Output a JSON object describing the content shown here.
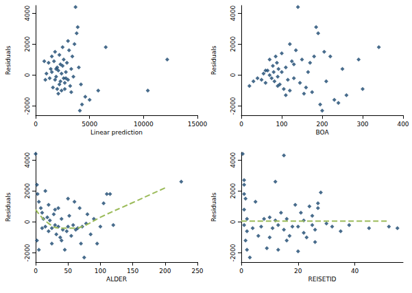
{
  "chart_data": [
    {
      "type": "scatter",
      "xlabel": "Linear prediction",
      "ylabel": "Residuals",
      "xlim": [
        0,
        15000
      ],
      "xticks": [
        0,
        5000,
        10000,
        15000
      ],
      "ylim": [
        -2600,
        4500
      ],
      "yticks": [
        -2000,
        0,
        2000,
        4000
      ],
      "grid": false,
      "series": [
        {
          "type": "scatter",
          "color": "#1a476f",
          "marker": "diamond",
          "x": [
            1500,
            1800,
            2000,
            2200,
            2400,
            2600,
            1700,
            1900,
            2100,
            2300,
            2500,
            2700,
            1600,
            2800,
            3000,
            1400,
            1300,
            1200,
            1000,
            800,
            900,
            3200,
            3400,
            3100,
            2900,
            3300,
            3500,
            2000,
            2200,
            2400,
            2600,
            1800,
            3600,
            3700,
            3900,
            3800,
            3000,
            4000,
            4200,
            4300,
            4100,
            4600,
            5000,
            5800,
            6500,
            10400,
            12200,
            2500,
            2100,
            1500,
            2700,
            3300,
            2300,
            1900,
            2800
          ],
          "values": [
            200,
            -300,
            500,
            -600,
            100,
            -200,
            900,
            -100,
            300,
            -400,
            600,
            -500,
            -800,
            200,
            -300,
            400,
            -200,
            800,
            100,
            900,
            -300,
            -700,
            1200,
            1600,
            800,
            400,
            -100,
            -900,
            1300,
            -1000,
            1000,
            1500,
            2000,
            4400,
            3100,
            2700,
            2200,
            500,
            -600,
            -1900,
            -2300,
            -1400,
            -1600,
            -1000,
            1800,
            -1000,
            1000,
            1800,
            -1200,
            1200,
            -900,
            -1100,
            700,
            400,
            -200
          ]
        }
      ]
    },
    {
      "type": "scatter",
      "xlabel": "BOA",
      "ylabel": "Residuals",
      "xlim": [
        0,
        400
      ],
      "xticks": [
        0,
        100,
        200,
        300,
        400
      ],
      "ylim": [
        -2600,
        4500
      ],
      "yticks": [
        -2000,
        0,
        2000,
        4000
      ],
      "grid": false,
      "series": [
        {
          "type": "scatter",
          "color": "#1a476f",
          "marker": "diamond",
          "x": [
            20,
            30,
            40,
            50,
            55,
            60,
            65,
            70,
            75,
            78,
            80,
            82,
            85,
            88,
            90,
            92,
            95,
            100,
            105,
            110,
            115,
            120,
            125,
            130,
            135,
            140,
            145,
            150,
            155,
            160,
            165,
            170,
            175,
            180,
            185,
            190,
            195,
            200,
            205,
            210,
            220,
            230,
            240,
            250,
            260,
            290,
            300,
            340,
            90,
            70,
            110,
            130,
            60,
            100,
            120
          ],
          "values": [
            -700,
            -400,
            -200,
            -300,
            100,
            -500,
            300,
            0,
            -200,
            600,
            200,
            -400,
            1200,
            800,
            -100,
            400,
            -600,
            200,
            -900,
            500,
            -300,
            -1000,
            900,
            -200,
            1600,
            4400,
            -500,
            1000,
            -1200,
            -800,
            200,
            800,
            -1100,
            1200,
            3100,
            2700,
            -1900,
            -2300,
            1500,
            -400,
            1200,
            -1600,
            -1800,
            400,
            -1300,
            1000,
            -900,
            1800,
            -700,
            1000,
            -1300,
            700,
            300,
            1400,
            2000
          ]
        }
      ]
    },
    {
      "type": "scatter",
      "xlabel": "ALDER",
      "ylabel": "Residuals",
      "xlim": [
        0,
        250
      ],
      "xticks": [
        0,
        50,
        100,
        150,
        200,
        250
      ],
      "ylim": [
        -2600,
        4500
      ],
      "yticks": [
        -2000,
        0,
        2000,
        4000
      ],
      "grid": false,
      "series": [
        {
          "type": "scatter",
          "color": "#1a476f",
          "marker": "diamond",
          "x": [
            0,
            2,
            3,
            5,
            5,
            2,
            8,
            10,
            12,
            15,
            18,
            20,
            22,
            25,
            28,
            30,
            32,
            35,
            38,
            40,
            42,
            45,
            48,
            50,
            52,
            55,
            58,
            60,
            62,
            65,
            68,
            70,
            72,
            75,
            78,
            80,
            85,
            90,
            95,
            100,
            105,
            110,
            115,
            120,
            225,
            10,
            20,
            30,
            40,
            50,
            15,
            25,
            35
          ],
          "values": [
            4400,
            2400,
            1800,
            1300,
            -1800,
            -1200,
            900,
            600,
            200,
            -300,
            300,
            -600,
            100,
            -400,
            500,
            -200,
            -800,
            -300,
            -1000,
            200,
            -500,
            -1800,
            -600,
            -300,
            400,
            -900,
            -200,
            1300,
            -500,
            -400,
            900,
            -1400,
            -300,
            -2300,
            -100,
            500,
            -800,
            200,
            -1400,
            -300,
            1200,
            1800,
            1800,
            -200,
            2600,
            -400,
            1100,
            800,
            -1200,
            1500,
            2000,
            -1400,
            900
          ]
        },
        {
          "type": "line",
          "color": "#9bbb59",
          "line_style": "dashed",
          "x": [
            0,
            20,
            40,
            60,
            75,
            100,
            150,
            200
          ],
          "values": [
            800,
            -100,
            -400,
            -400,
            -250,
            300,
            1250,
            2200
          ]
        }
      ]
    },
    {
      "type": "scatter",
      "xlabel": "REISETID",
      "ylabel": "Residuals",
      "xlim": [
        0,
        57
      ],
      "xticks": [
        0,
        20,
        40
      ],
      "ylim": [
        -2600,
        4500
      ],
      "yticks": [
        -2000,
        0,
        2000,
        4000
      ],
      "grid": false,
      "series": [
        {
          "type": "scatter",
          "color": "#1a476f",
          "marker": "diamond",
          "x": [
            0.5,
            1,
            1,
            1,
            1.5,
            1,
            2,
            1,
            2,
            1.5,
            2,
            3,
            4,
            5,
            6,
            7,
            8,
            10,
            10,
            11,
            12,
            12,
            13,
            13,
            14,
            15,
            15,
            16,
            17,
            18,
            19,
            20,
            20,
            21,
            22,
            22,
            23,
            24,
            25,
            25,
            26,
            27,
            27,
            28,
            30,
            32,
            35,
            38,
            45,
            52,
            55,
            9,
            16,
            26
          ],
          "values": [
            4400,
            2700,
            2400,
            1800,
            1500,
            800,
            200,
            -200,
            -600,
            -1200,
            -1800,
            -2300,
            -400,
            1300,
            -900,
            -300,
            200,
            300,
            -1000,
            -400,
            2600,
            100,
            -200,
            -1800,
            600,
            4300,
            -500,
            200,
            -900,
            -300,
            1100,
            -300,
            -1900,
            600,
            100,
            -700,
            -1000,
            1000,
            -200,
            400,
            -500,
            1200,
            900,
            1900,
            -100,
            -300,
            -600,
            -200,
            -400,
            -300,
            -400,
            -1700,
            -1200,
            -1300
          ]
        },
        {
          "type": "line",
          "color": "#9bbb59",
          "line_style": "dashed",
          "x": [
            0,
            52
          ],
          "values": [
            50,
            50
          ]
        }
      ]
    }
  ]
}
